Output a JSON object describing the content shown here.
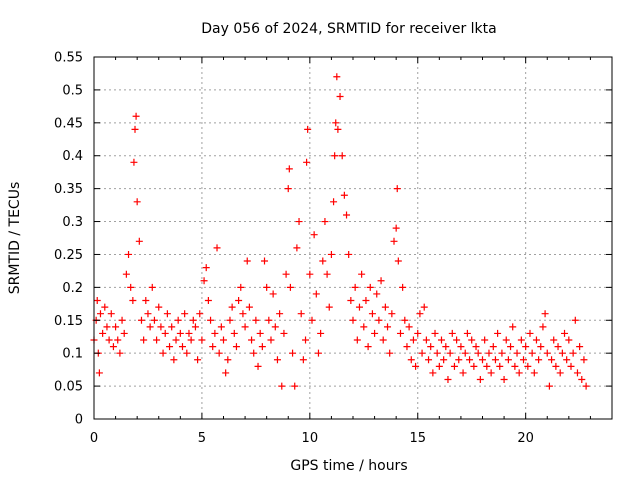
{
  "chart_data": {
    "type": "scatter",
    "title": "Day 056 of 2024, SRMTID for receiver lkta",
    "xlabel": "GPS time / hours",
    "ylabel": "SRMTID / TECUs",
    "xlim": [
      0,
      24
    ],
    "ylim": [
      0,
      0.55
    ],
    "xticks": [
      "0",
      "5",
      "10",
      "15",
      "20"
    ],
    "yticks": [
      "0",
      "0.05",
      "0.1",
      "0.15",
      "0.2",
      "0.25",
      "0.3",
      "0.35",
      "0.4",
      "0.45",
      "0.5",
      "0.55"
    ],
    "grid": true,
    "marker": "+",
    "color": "#ff0000",
    "series": [
      {
        "points": [
          [
            0.0,
            0.12
          ],
          [
            0.1,
            0.15
          ],
          [
            0.15,
            0.18
          ],
          [
            0.2,
            0.1
          ],
          [
            0.25,
            0.07
          ],
          [
            0.3,
            0.16
          ],
          [
            0.4,
            0.13
          ],
          [
            0.5,
            0.17
          ],
          [
            0.6,
            0.14
          ],
          [
            0.7,
            0.12
          ],
          [
            0.8,
            0.16
          ],
          [
            0.9,
            0.11
          ],
          [
            1.0,
            0.14
          ],
          [
            1.1,
            0.12
          ],
          [
            1.2,
            0.1
          ],
          [
            1.3,
            0.15
          ],
          [
            1.4,
            0.13
          ],
          [
            1.5,
            0.22
          ],
          [
            1.6,
            0.25
          ],
          [
            1.7,
            0.2
          ],
          [
            1.8,
            0.18
          ],
          [
            1.85,
            0.39
          ],
          [
            1.9,
            0.44
          ],
          [
            1.95,
            0.46
          ],
          [
            2.0,
            0.33
          ],
          [
            2.1,
            0.27
          ],
          [
            2.2,
            0.15
          ],
          [
            2.3,
            0.12
          ],
          [
            2.4,
            0.18
          ],
          [
            2.5,
            0.16
          ],
          [
            2.6,
            0.14
          ],
          [
            2.7,
            0.2
          ],
          [
            2.8,
            0.15
          ],
          [
            2.9,
            0.12
          ],
          [
            3.0,
            0.17
          ],
          [
            3.1,
            0.14
          ],
          [
            3.2,
            0.1
          ],
          [
            3.3,
            0.13
          ],
          [
            3.4,
            0.16
          ],
          [
            3.5,
            0.11
          ],
          [
            3.6,
            0.14
          ],
          [
            3.7,
            0.09
          ],
          [
            3.8,
            0.12
          ],
          [
            3.9,
            0.15
          ],
          [
            4.0,
            0.13
          ],
          [
            4.1,
            0.11
          ],
          [
            4.2,
            0.16
          ],
          [
            4.3,
            0.1
          ],
          [
            4.4,
            0.13
          ],
          [
            4.5,
            0.12
          ],
          [
            4.6,
            0.15
          ],
          [
            4.7,
            0.14
          ],
          [
            4.8,
            0.09
          ],
          [
            4.9,
            0.16
          ],
          [
            5.0,
            0.12
          ],
          [
            5.1,
            0.21
          ],
          [
            5.2,
            0.23
          ],
          [
            5.3,
            0.18
          ],
          [
            5.4,
            0.15
          ],
          [
            5.5,
            0.11
          ],
          [
            5.6,
            0.13
          ],
          [
            5.7,
            0.26
          ],
          [
            5.8,
            0.1
          ],
          [
            5.9,
            0.14
          ],
          [
            6.0,
            0.12
          ],
          [
            6.1,
            0.07
          ],
          [
            6.2,
            0.09
          ],
          [
            6.3,
            0.15
          ],
          [
            6.4,
            0.17
          ],
          [
            6.5,
            0.13
          ],
          [
            6.6,
            0.11
          ],
          [
            6.7,
            0.18
          ],
          [
            6.8,
            0.2
          ],
          [
            6.9,
            0.16
          ],
          [
            7.0,
            0.14
          ],
          [
            7.1,
            0.24
          ],
          [
            7.2,
            0.17
          ],
          [
            7.3,
            0.12
          ],
          [
            7.4,
            0.1
          ],
          [
            7.5,
            0.15
          ],
          [
            7.6,
            0.08
          ],
          [
            7.7,
            0.13
          ],
          [
            7.8,
            0.11
          ],
          [
            7.9,
            0.24
          ],
          [
            8.0,
            0.2
          ],
          [
            8.1,
            0.15
          ],
          [
            8.2,
            0.12
          ],
          [
            8.3,
            0.19
          ],
          [
            8.4,
            0.14
          ],
          [
            8.5,
            0.09
          ],
          [
            8.6,
            0.16
          ],
          [
            8.7,
            0.05
          ],
          [
            8.8,
            0.13
          ],
          [
            8.9,
            0.22
          ],
          [
            9.0,
            0.35
          ],
          [
            9.05,
            0.38
          ],
          [
            9.1,
            0.2
          ],
          [
            9.2,
            0.1
          ],
          [
            9.3,
            0.05
          ],
          [
            9.4,
            0.26
          ],
          [
            9.5,
            0.3
          ],
          [
            9.6,
            0.16
          ],
          [
            9.7,
            0.09
          ],
          [
            9.8,
            0.12
          ],
          [
            9.85,
            0.39
          ],
          [
            9.9,
            0.44
          ],
          [
            10.0,
            0.22
          ],
          [
            10.1,
            0.15
          ],
          [
            10.2,
            0.28
          ],
          [
            10.3,
            0.19
          ],
          [
            10.4,
            0.1
          ],
          [
            10.5,
            0.13
          ],
          [
            10.6,
            0.24
          ],
          [
            10.7,
            0.3
          ],
          [
            10.8,
            0.22
          ],
          [
            10.9,
            0.17
          ],
          [
            11.0,
            0.25
          ],
          [
            11.1,
            0.33
          ],
          [
            11.15,
            0.4
          ],
          [
            11.2,
            0.45
          ],
          [
            11.25,
            0.52
          ],
          [
            11.3,
            0.44
          ],
          [
            11.4,
            0.49
          ],
          [
            11.5,
            0.4
          ],
          [
            11.6,
            0.34
          ],
          [
            11.7,
            0.31
          ],
          [
            11.8,
            0.25
          ],
          [
            11.9,
            0.18
          ],
          [
            12.0,
            0.15
          ],
          [
            12.1,
            0.2
          ],
          [
            12.2,
            0.12
          ],
          [
            12.3,
            0.17
          ],
          [
            12.4,
            0.22
          ],
          [
            12.5,
            0.14
          ],
          [
            12.6,
            0.18
          ],
          [
            12.7,
            0.11
          ],
          [
            12.8,
            0.2
          ],
          [
            12.9,
            0.16
          ],
          [
            13.0,
            0.13
          ],
          [
            13.1,
            0.19
          ],
          [
            13.2,
            0.15
          ],
          [
            13.3,
            0.21
          ],
          [
            13.4,
            0.12
          ],
          [
            13.5,
            0.17
          ],
          [
            13.6,
            0.14
          ],
          [
            13.7,
            0.1
          ],
          [
            13.8,
            0.16
          ],
          [
            13.9,
            0.27
          ],
          [
            14.0,
            0.29
          ],
          [
            14.05,
            0.35
          ],
          [
            14.1,
            0.24
          ],
          [
            14.2,
            0.13
          ],
          [
            14.3,
            0.2
          ],
          [
            14.4,
            0.15
          ],
          [
            14.5,
            0.11
          ],
          [
            14.6,
            0.14
          ],
          [
            14.7,
            0.09
          ],
          [
            14.8,
            0.12
          ],
          [
            14.9,
            0.08
          ],
          [
            15.0,
            0.13
          ],
          [
            15.1,
            0.16
          ],
          [
            15.2,
            0.1
          ],
          [
            15.3,
            0.17
          ],
          [
            15.4,
            0.12
          ],
          [
            15.5,
            0.09
          ],
          [
            15.6,
            0.11
          ],
          [
            15.7,
            0.07
          ],
          [
            15.8,
            0.13
          ],
          [
            15.9,
            0.1
          ],
          [
            16.0,
            0.08
          ],
          [
            16.1,
            0.12
          ],
          [
            16.2,
            0.09
          ],
          [
            16.3,
            0.11
          ],
          [
            16.4,
            0.06
          ],
          [
            16.5,
            0.1
          ],
          [
            16.6,
            0.13
          ],
          [
            16.7,
            0.08
          ],
          [
            16.8,
            0.12
          ],
          [
            16.9,
            0.09
          ],
          [
            17.0,
            0.11
          ],
          [
            17.1,
            0.07
          ],
          [
            17.2,
            0.1
          ],
          [
            17.3,
            0.13
          ],
          [
            17.4,
            0.09
          ],
          [
            17.5,
            0.12
          ],
          [
            17.6,
            0.08
          ],
          [
            17.7,
            0.11
          ],
          [
            17.8,
            0.1
          ],
          [
            17.9,
            0.06
          ],
          [
            18.0,
            0.09
          ],
          [
            18.1,
            0.12
          ],
          [
            18.2,
            0.08
          ],
          [
            18.3,
            0.1
          ],
          [
            18.4,
            0.07
          ],
          [
            18.5,
            0.11
          ],
          [
            18.6,
            0.09
          ],
          [
            18.7,
            0.13
          ],
          [
            18.8,
            0.08
          ],
          [
            18.9,
            0.1
          ],
          [
            19.0,
            0.06
          ],
          [
            19.1,
            0.12
          ],
          [
            19.2,
            0.09
          ],
          [
            19.3,
            0.11
          ],
          [
            19.4,
            0.14
          ],
          [
            19.5,
            0.08
          ],
          [
            19.6,
            0.1
          ],
          [
            19.7,
            0.07
          ],
          [
            19.8,
            0.12
          ],
          [
            19.9,
            0.09
          ],
          [
            20.0,
            0.11
          ],
          [
            20.1,
            0.08
          ],
          [
            20.2,
            0.13
          ],
          [
            20.3,
            0.1
          ],
          [
            20.4,
            0.07
          ],
          [
            20.5,
            0.12
          ],
          [
            20.6,
            0.09
          ],
          [
            20.7,
            0.11
          ],
          [
            20.8,
            0.14
          ],
          [
            20.9,
            0.16
          ],
          [
            21.0,
            0.1
          ],
          [
            21.1,
            0.05
          ],
          [
            21.2,
            0.09
          ],
          [
            21.3,
            0.12
          ],
          [
            21.4,
            0.08
          ],
          [
            21.5,
            0.11
          ],
          [
            21.6,
            0.07
          ],
          [
            21.7,
            0.1
          ],
          [
            21.8,
            0.13
          ],
          [
            21.9,
            0.09
          ],
          [
            22.0,
            0.12
          ],
          [
            22.1,
            0.08
          ],
          [
            22.2,
            0.1
          ],
          [
            22.3,
            0.15
          ],
          [
            22.4,
            0.07
          ],
          [
            22.5,
            0.11
          ],
          [
            22.6,
            0.06
          ],
          [
            22.7,
            0.09
          ],
          [
            22.8,
            0.05
          ]
        ]
      }
    ]
  }
}
